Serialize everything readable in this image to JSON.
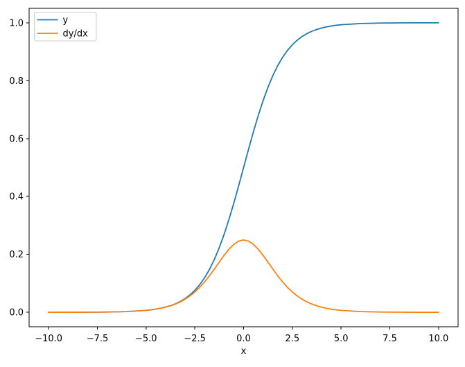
{
  "chart_data": {
    "type": "line",
    "title": "",
    "xlabel": "x",
    "ylabel": "",
    "xlim": [
      -11,
      11
    ],
    "ylim": [
      -0.05,
      1.05
    ],
    "x_ticks": [
      -10.0,
      -7.5,
      -5.0,
      -2.5,
      0.0,
      2.5,
      5.0,
      7.5,
      10.0
    ],
    "x_tick_labels": [
      "−10.0",
      "−7.5",
      "−5.0",
      "−2.5",
      "0.0",
      "2.5",
      "5.0",
      "7.5",
      "10.0"
    ],
    "y_ticks": [
      0.0,
      0.2,
      0.4,
      0.6,
      0.8,
      1.0
    ],
    "y_tick_labels": [
      "0.0",
      "0.2",
      "0.4",
      "0.6",
      "0.8",
      "1.0"
    ],
    "grid": false,
    "legend": {
      "position": "upper left",
      "entries": [
        {
          "label": "y",
          "color": "#1f77b4"
        },
        {
          "label": "dy/dx",
          "color": "#ff7f0e"
        }
      ]
    },
    "x": [
      -10,
      -9,
      -8,
      -7,
      -6,
      -5,
      -4.75,
      -4.5,
      -4.25,
      -4,
      -3.75,
      -3.5,
      -3.25,
      -3,
      -2.75,
      -2.5,
      -2.25,
      -2,
      -1.75,
      -1.5,
      -1.25,
      -1,
      -0.75,
      -0.5,
      -0.25,
      0,
      0.25,
      0.5,
      0.75,
      1,
      1.25,
      1.5,
      1.75,
      2,
      2.25,
      2.5,
      2.75,
      3,
      3.25,
      3.5,
      3.75,
      4,
      4.25,
      4.5,
      4.75,
      5,
      6,
      7,
      8,
      9,
      10
    ],
    "series": [
      {
        "name": "y",
        "color": "#1f77b4",
        "values": [
          0.0,
          0.0001,
          0.0003,
          0.0009,
          0.0025,
          0.0067,
          0.0086,
          0.011,
          0.0141,
          0.018,
          0.023,
          0.0293,
          0.0373,
          0.0474,
          0.0601,
          0.0759,
          0.0953,
          0.1192,
          0.148,
          0.1824,
          0.2227,
          0.2689,
          0.3208,
          0.3775,
          0.4378,
          0.5,
          0.5622,
          0.6225,
          0.6792,
          0.7311,
          0.7773,
          0.8176,
          0.852,
          0.8808,
          0.9047,
          0.9241,
          0.9399,
          0.9526,
          0.9627,
          0.9707,
          0.977,
          0.982,
          0.9859,
          0.989,
          0.9914,
          0.9933,
          0.9975,
          0.9991,
          0.9997,
          0.9999,
          1.0
        ]
      },
      {
        "name": "dy/dx",
        "color": "#ff7f0e",
        "values": [
          0.0,
          0.0001,
          0.0003,
          0.0009,
          0.0025,
          0.0066,
          0.0085,
          0.0109,
          0.0139,
          0.0177,
          0.0225,
          0.0284,
          0.0359,
          0.0452,
          0.0565,
          0.0701,
          0.0862,
          0.105,
          0.1261,
          0.1491,
          0.1731,
          0.1966,
          0.2179,
          0.235,
          0.2461,
          0.25,
          0.2461,
          0.235,
          0.2179,
          0.1966,
          0.1731,
          0.1491,
          0.1261,
          0.105,
          0.0862,
          0.0701,
          0.0565,
          0.0452,
          0.0359,
          0.0284,
          0.0225,
          0.0177,
          0.0139,
          0.0109,
          0.0085,
          0.0066,
          0.0025,
          0.0009,
          0.0003,
          0.0001,
          0.0
        ]
      }
    ]
  },
  "colors": {
    "background": "#ffffff",
    "axis": "#000000",
    "legend_edge": "#cccccc",
    "legend_face": "#ffffff",
    "series_blue": "#1f77b4",
    "series_orange": "#ff7f0e"
  }
}
